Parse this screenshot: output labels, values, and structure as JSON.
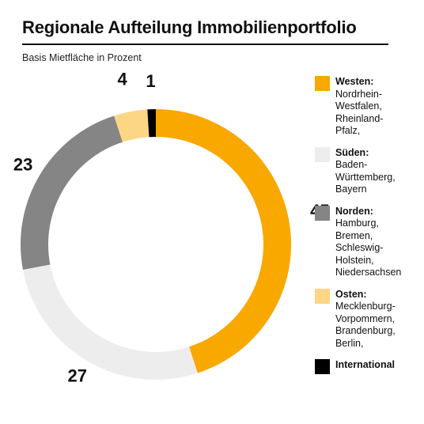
{
  "header": {
    "title": "Regionale Aufteilung Immobilienportfolio",
    "subtitle": "Basis Mietfläche in Prozent"
  },
  "chart_data": {
    "type": "pie",
    "style": "donut",
    "title": "Regionale Aufteilung Immobilienportfolio",
    "subtitle": "Basis Mietfläche in Prozent",
    "legend_position": "right",
    "slices": [
      {
        "name": "Westen",
        "label": "Westen:",
        "desc": "Nordrhein-\nWestfalen,\nRheinland-\nPfalz,",
        "value": 45,
        "color": "#F9A800"
      },
      {
        "name": "Süden",
        "label": "Süden:",
        "desc": "Baden-\nWürttemberg,\nBayern",
        "value": 27,
        "color": "#EDEDED"
      },
      {
        "name": "Norden",
        "label": "Norden:",
        "desc": "Hamburg,\nBremen,\nSchleswig-\nHolstein,\nNiedersachsen",
        "value": 23,
        "color": "#858585"
      },
      {
        "name": "Osten",
        "label": "Osten:",
        "desc": "Mecklenburg-\nVorpommern,\nBrandenburg,\nBerlin,",
        "value": 4,
        "color": "#FDD685"
      },
      {
        "name": "International",
        "label": "International",
        "desc": "",
        "value": 1,
        "color": "#000000"
      }
    ]
  }
}
